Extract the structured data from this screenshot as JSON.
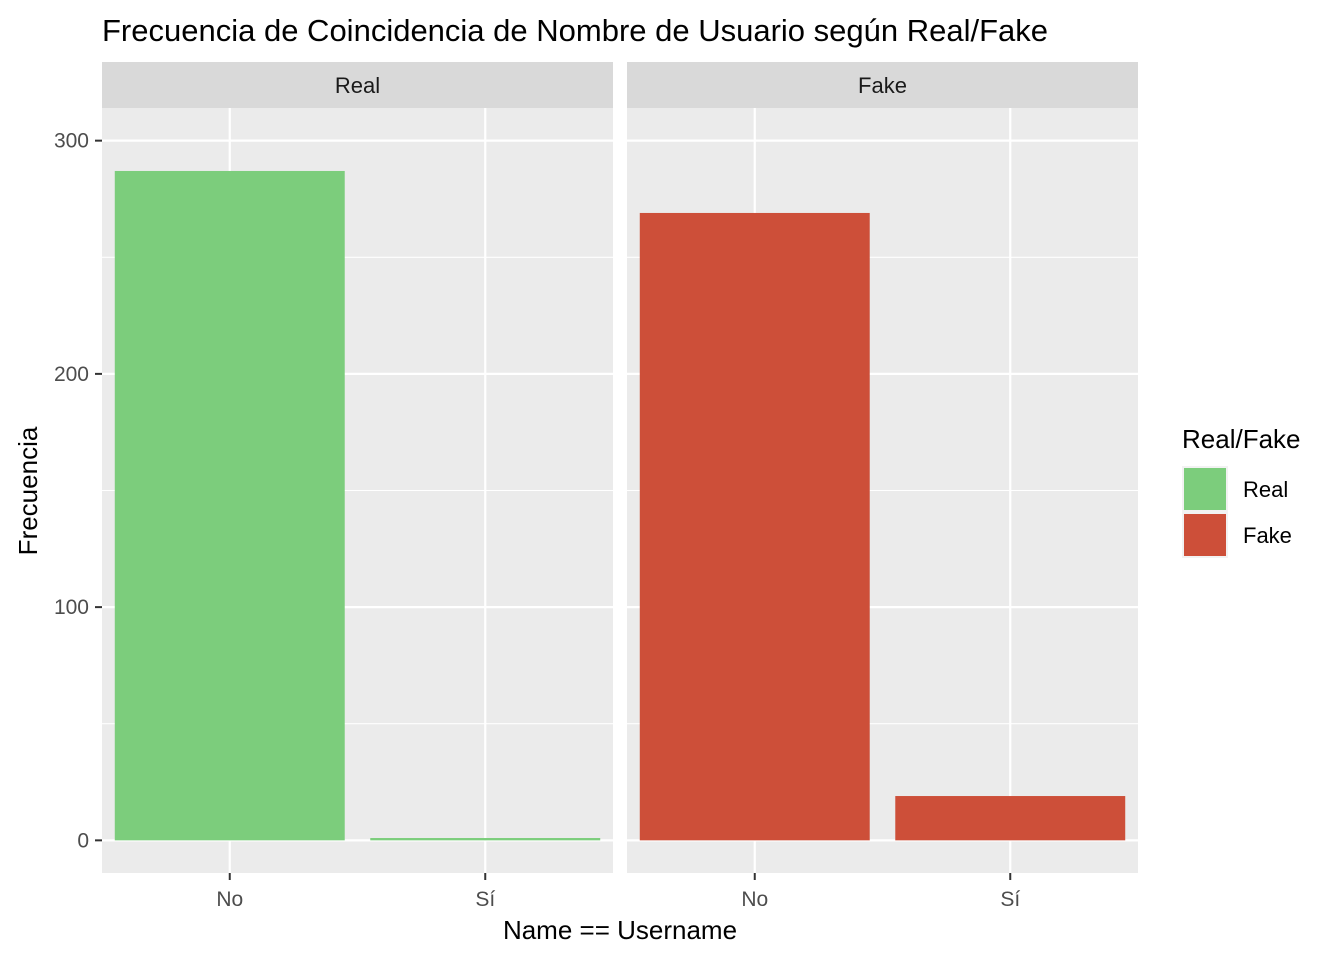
{
  "chart_data": {
    "type": "bar",
    "title": "Frecuencia de Coincidencia de Nombre de Usuario según Real/Fake",
    "xlabel": "Name == Username",
    "ylabel": "Frecuencia",
    "categories": [
      "No",
      "Sí"
    ],
    "ylim": [
      -14,
      314
    ],
    "yticks": [
      0,
      100,
      200,
      300
    ],
    "facets": [
      {
        "name": "Real",
        "values": [
          287,
          1
        ],
        "color": "#7CCD7C"
      },
      {
        "name": "Fake",
        "values": [
          269,
          19
        ],
        "color": "#CD4F39"
      }
    ],
    "legend": {
      "title": "Real/Fake",
      "position": "right",
      "entries": [
        {
          "label": "Real",
          "color": "#7CCD7C"
        },
        {
          "label": "Fake",
          "color": "#CD4F39"
        }
      ]
    },
    "grid": true
  }
}
